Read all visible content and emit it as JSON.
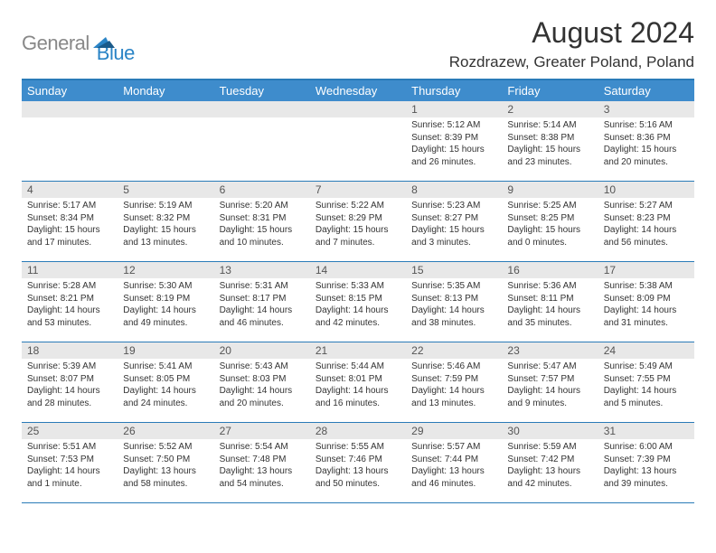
{
  "logo": {
    "gray": "General",
    "blue": "Blue"
  },
  "title": "August 2024",
  "location": "Rozdrazew, Greater Poland, Poland",
  "weekdays": [
    "Sunday",
    "Monday",
    "Tuesday",
    "Wednesday",
    "Thursday",
    "Friday",
    "Saturday"
  ],
  "colors": {
    "header_bar": "#3e8ccc",
    "border": "#2a7bb8",
    "day_header_bg": "#e8e8e8",
    "logo_gray": "#888888",
    "logo_blue": "#2a84c6"
  },
  "weeks": [
    [
      null,
      null,
      null,
      null,
      {
        "n": "1",
        "r": "5:12 AM",
        "s": "8:39 PM",
        "d": "15 hours and 26 minutes."
      },
      {
        "n": "2",
        "r": "5:14 AM",
        "s": "8:38 PM",
        "d": "15 hours and 23 minutes."
      },
      {
        "n": "3",
        "r": "5:16 AM",
        "s": "8:36 PM",
        "d": "15 hours and 20 minutes."
      }
    ],
    [
      {
        "n": "4",
        "r": "5:17 AM",
        "s": "8:34 PM",
        "d": "15 hours and 17 minutes."
      },
      {
        "n": "5",
        "r": "5:19 AM",
        "s": "8:32 PM",
        "d": "15 hours and 13 minutes."
      },
      {
        "n": "6",
        "r": "5:20 AM",
        "s": "8:31 PM",
        "d": "15 hours and 10 minutes."
      },
      {
        "n": "7",
        "r": "5:22 AM",
        "s": "8:29 PM",
        "d": "15 hours and 7 minutes."
      },
      {
        "n": "8",
        "r": "5:23 AM",
        "s": "8:27 PM",
        "d": "15 hours and 3 minutes."
      },
      {
        "n": "9",
        "r": "5:25 AM",
        "s": "8:25 PM",
        "d": "15 hours and 0 minutes."
      },
      {
        "n": "10",
        "r": "5:27 AM",
        "s": "8:23 PM",
        "d": "14 hours and 56 minutes."
      }
    ],
    [
      {
        "n": "11",
        "r": "5:28 AM",
        "s": "8:21 PM",
        "d": "14 hours and 53 minutes."
      },
      {
        "n": "12",
        "r": "5:30 AM",
        "s": "8:19 PM",
        "d": "14 hours and 49 minutes."
      },
      {
        "n": "13",
        "r": "5:31 AM",
        "s": "8:17 PM",
        "d": "14 hours and 46 minutes."
      },
      {
        "n": "14",
        "r": "5:33 AM",
        "s": "8:15 PM",
        "d": "14 hours and 42 minutes."
      },
      {
        "n": "15",
        "r": "5:35 AM",
        "s": "8:13 PM",
        "d": "14 hours and 38 minutes."
      },
      {
        "n": "16",
        "r": "5:36 AM",
        "s": "8:11 PM",
        "d": "14 hours and 35 minutes."
      },
      {
        "n": "17",
        "r": "5:38 AM",
        "s": "8:09 PM",
        "d": "14 hours and 31 minutes."
      }
    ],
    [
      {
        "n": "18",
        "r": "5:39 AM",
        "s": "8:07 PM",
        "d": "14 hours and 28 minutes."
      },
      {
        "n": "19",
        "r": "5:41 AM",
        "s": "8:05 PM",
        "d": "14 hours and 24 minutes."
      },
      {
        "n": "20",
        "r": "5:43 AM",
        "s": "8:03 PM",
        "d": "14 hours and 20 minutes."
      },
      {
        "n": "21",
        "r": "5:44 AM",
        "s": "8:01 PM",
        "d": "14 hours and 16 minutes."
      },
      {
        "n": "22",
        "r": "5:46 AM",
        "s": "7:59 PM",
        "d": "14 hours and 13 minutes."
      },
      {
        "n": "23",
        "r": "5:47 AM",
        "s": "7:57 PM",
        "d": "14 hours and 9 minutes."
      },
      {
        "n": "24",
        "r": "5:49 AM",
        "s": "7:55 PM",
        "d": "14 hours and 5 minutes."
      }
    ],
    [
      {
        "n": "25",
        "r": "5:51 AM",
        "s": "7:53 PM",
        "d": "14 hours and 1 minute."
      },
      {
        "n": "26",
        "r": "5:52 AM",
        "s": "7:50 PM",
        "d": "13 hours and 58 minutes."
      },
      {
        "n": "27",
        "r": "5:54 AM",
        "s": "7:48 PM",
        "d": "13 hours and 54 minutes."
      },
      {
        "n": "28",
        "r": "5:55 AM",
        "s": "7:46 PM",
        "d": "13 hours and 50 minutes."
      },
      {
        "n": "29",
        "r": "5:57 AM",
        "s": "7:44 PM",
        "d": "13 hours and 46 minutes."
      },
      {
        "n": "30",
        "r": "5:59 AM",
        "s": "7:42 PM",
        "d": "13 hours and 42 minutes."
      },
      {
        "n": "31",
        "r": "6:00 AM",
        "s": "7:39 PM",
        "d": "13 hours and 39 minutes."
      }
    ]
  ],
  "labels": {
    "sunrise": "Sunrise: ",
    "sunset": "Sunset: ",
    "daylight": "Daylight: "
  }
}
